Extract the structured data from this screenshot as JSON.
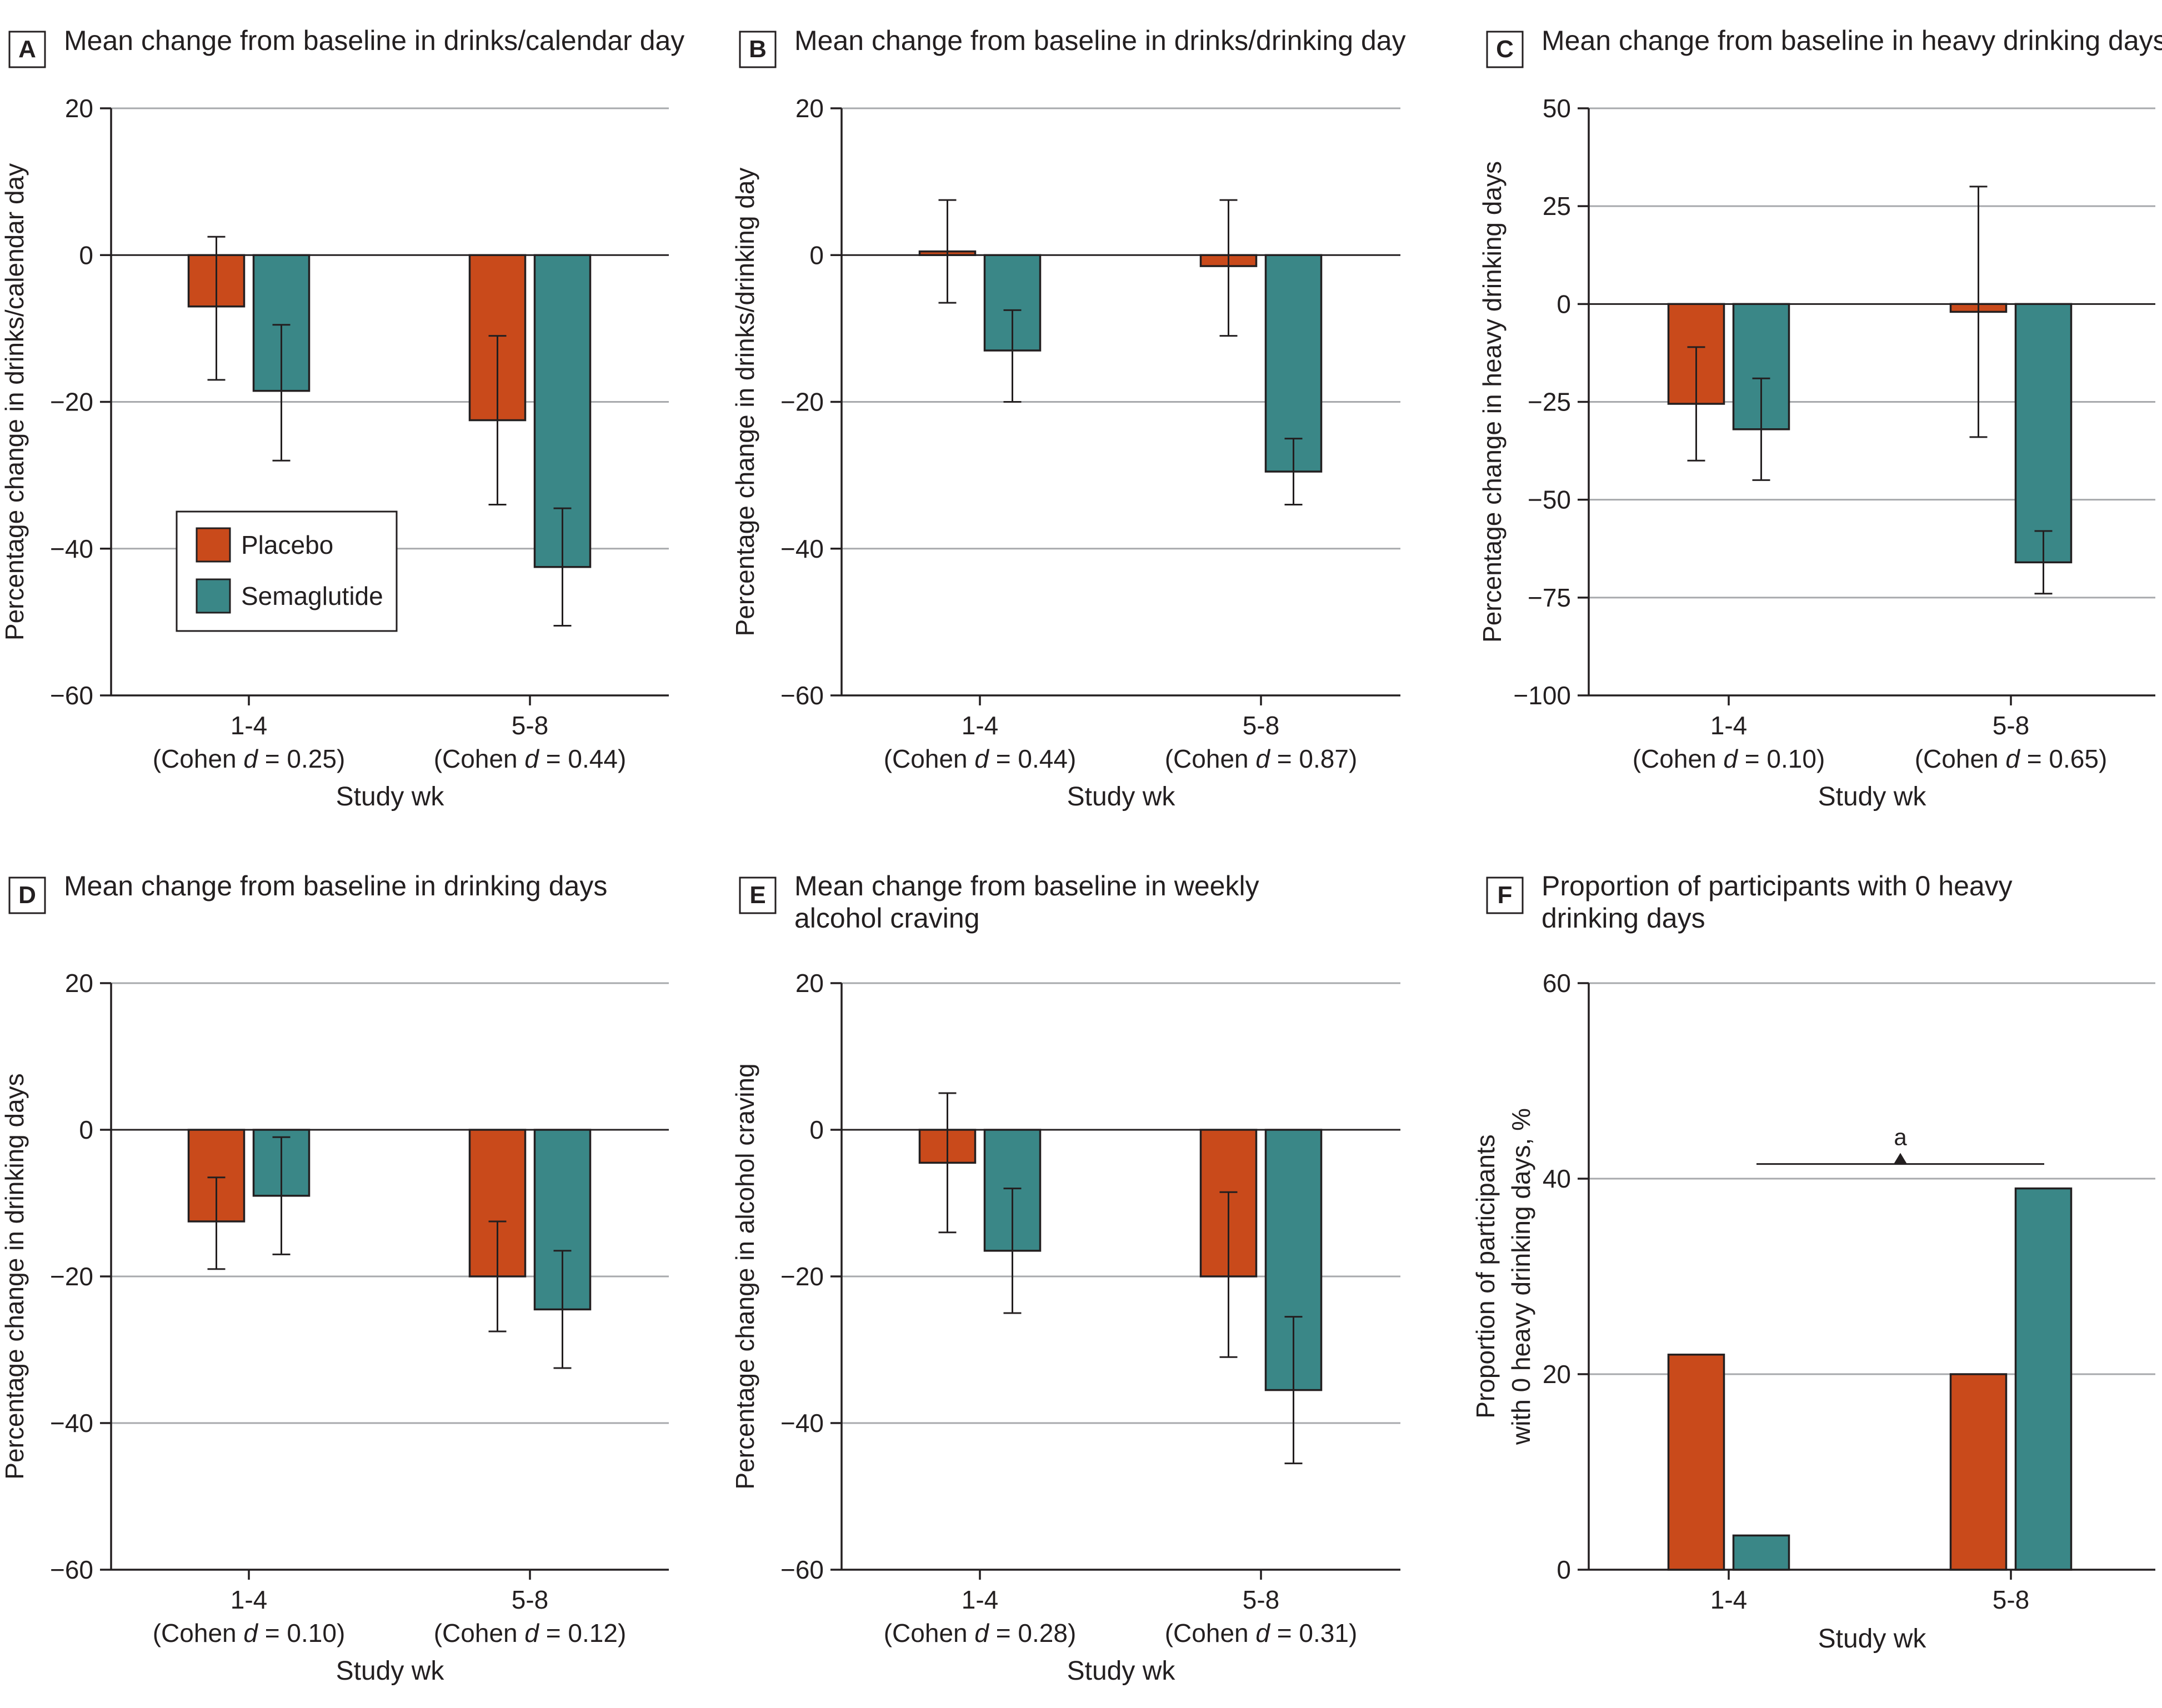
{
  "figure": {
    "legend": {
      "items": [
        {
          "label": "Placebo",
          "color": "#c94a1b"
        },
        {
          "label": "Semaglutide",
          "color": "#3a8787"
        }
      ]
    }
  },
  "chart_data": [
    {
      "panel": "A",
      "type": "bar",
      "title": "Mean change from baseline in drinks/calendar day",
      "ylabel": "Percentage change in drinks/calendar day",
      "xlabel": "Study wk",
      "categories": [
        "1-4",
        "5-8"
      ],
      "category_notes": [
        "(Cohen d = 0.25)",
        "(Cohen d = 0.44)"
      ],
      "ylim": [
        -60,
        20
      ],
      "yticks": [
        20,
        0,
        -20,
        -40,
        -60
      ],
      "legend_position": "lower-left inside",
      "series": [
        {
          "name": "Placebo",
          "color": "#c94a1b",
          "values": [
            -7,
            -22.5
          ],
          "err_low": [
            -17,
            -34
          ],
          "err_high": [
            2.5,
            -11
          ]
        },
        {
          "name": "Semaglutide",
          "color": "#3a8787",
          "values": [
            -18.5,
            -42.5
          ],
          "err_low": [
            -28,
            -50.5
          ],
          "err_high": [
            -9.5,
            -34.5
          ]
        }
      ]
    },
    {
      "panel": "B",
      "type": "bar",
      "title": "Mean change from baseline in drinks/drinking day",
      "ylabel": "Percentage change in drinks/drinking day",
      "xlabel": "Study wk",
      "categories": [
        "1-4",
        "5-8"
      ],
      "category_notes": [
        "(Cohen d = 0.44)",
        "(Cohen d = 0.87)"
      ],
      "ylim": [
        -60,
        20
      ],
      "yticks": [
        20,
        0,
        -20,
        -40,
        -60
      ],
      "series": [
        {
          "name": "Placebo",
          "color": "#c94a1b",
          "values": [
            0.5,
            -1.5
          ],
          "err_low": [
            -6.5,
            -11
          ],
          "err_high": [
            7.5,
            7.5
          ]
        },
        {
          "name": "Semaglutide",
          "color": "#3a8787",
          "values": [
            -13,
            -29.5
          ],
          "err_low": [
            -20,
            -34
          ],
          "err_high": [
            -7.5,
            -25
          ]
        }
      ]
    },
    {
      "panel": "C",
      "type": "bar",
      "title": "Mean change from baseline in heavy drinking days",
      "ylabel": "Percentage change in heavy drinking days",
      "xlabel": "Study wk",
      "categories": [
        "1-4",
        "5-8"
      ],
      "category_notes": [
        "(Cohen d = 0.10)",
        "(Cohen d = 0.65)"
      ],
      "ylim": [
        -100,
        50
      ],
      "yticks": [
        50,
        25,
        0,
        -25,
        -50,
        -75,
        -100
      ],
      "series": [
        {
          "name": "Placebo",
          "color": "#c94a1b",
          "values": [
            -25.5,
            -2
          ],
          "err_low": [
            -40,
            -34
          ],
          "err_high": [
            -11,
            30
          ]
        },
        {
          "name": "Semaglutide",
          "color": "#3a8787",
          "values": [
            -32,
            -66
          ],
          "err_low": [
            -45,
            -74
          ],
          "err_high": [
            -19,
            -58
          ]
        }
      ]
    },
    {
      "panel": "D",
      "type": "bar",
      "title": "Mean change from baseline in drinking days",
      "ylabel": "Percentage change in drinking days",
      "xlabel": "Study wk",
      "categories": [
        "1-4",
        "5-8"
      ],
      "category_notes": [
        "(Cohen d = 0.10)",
        "(Cohen d = 0.12)"
      ],
      "ylim": [
        -60,
        20
      ],
      "yticks": [
        20,
        0,
        -20,
        -40,
        -60
      ],
      "series": [
        {
          "name": "Placebo",
          "color": "#c94a1b",
          "values": [
            -12.5,
            -20
          ],
          "err_low": [
            -19,
            -27.5
          ],
          "err_high": [
            -6.5,
            -12.5
          ]
        },
        {
          "name": "Semaglutide",
          "color": "#3a8787",
          "values": [
            -9,
            -24.5
          ],
          "err_low": [
            -17,
            -32.5
          ],
          "err_high": [
            -1,
            -16.5
          ]
        }
      ]
    },
    {
      "panel": "E",
      "type": "bar",
      "title": [
        "Mean change from baseline in weekly",
        "alcohol craving"
      ],
      "ylabel": "Percentage change in alcohol craving",
      "xlabel": "Study wk",
      "categories": [
        "1-4",
        "5-8"
      ],
      "category_notes": [
        "(Cohen d = 0.28)",
        "(Cohen d = 0.31)"
      ],
      "ylim": [
        -60,
        20
      ],
      "yticks": [
        20,
        0,
        -20,
        -40,
        -60
      ],
      "series": [
        {
          "name": "Placebo",
          "color": "#c94a1b",
          "values": [
            -4.5,
            -20
          ],
          "err_low": [
            -14,
            -31
          ],
          "err_high": [
            5,
            -8.5
          ]
        },
        {
          "name": "Semaglutide",
          "color": "#3a8787",
          "values": [
            -16.5,
            -35.5
          ],
          "err_low": [
            -25,
            -45.5
          ],
          "err_high": [
            -8,
            -25.5
          ]
        }
      ]
    },
    {
      "panel": "F",
      "type": "bar",
      "title": [
        "Proportion of participants with 0 heavy",
        "drinking days"
      ],
      "ylabel": [
        "Proportion of participants",
        "with 0 heavy drinking days, %"
      ],
      "xlabel": "Study wk",
      "categories": [
        "1-4",
        "5-8"
      ],
      "category_notes": [
        "",
        ""
      ],
      "ylim": [
        0,
        60
      ],
      "yticks": [
        60,
        40,
        20,
        0
      ],
      "annotation": {
        "label": "a",
        "y": 41.5,
        "from": "1-4",
        "to": "5-8"
      },
      "series": [
        {
          "name": "Placebo",
          "color": "#c94a1b",
          "values": [
            22,
            20
          ]
        },
        {
          "name": "Semaglutide",
          "color": "#3a8787",
          "values": [
            3.5,
            39
          ]
        }
      ]
    }
  ]
}
